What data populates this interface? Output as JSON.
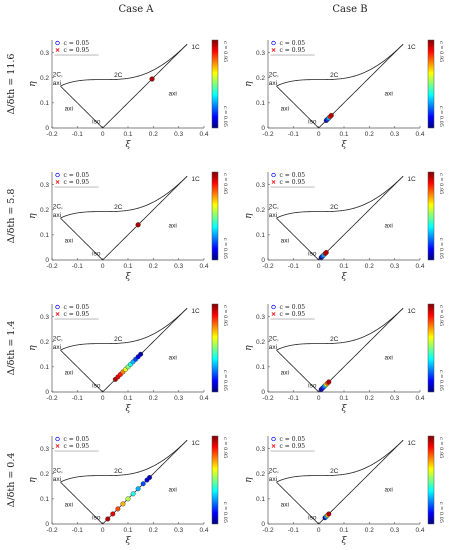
{
  "columns": [
    "Case A",
    "Case B"
  ],
  "colormap": [
    "#00007f",
    "#0000ff",
    "#007fff",
    "#00ffff",
    "#7fff7f",
    "#ffff00",
    "#ff7f00",
    "#ff0000",
    "#7f0000"
  ],
  "chart_data": {
    "type": "scatter",
    "grid_layout": "4 rows x 2 columns",
    "xlabel": "ξ",
    "ylabel": "η",
    "xlim": [
      -0.2,
      0.4
    ],
    "ylim": [
      0,
      0.35
    ],
    "xticks": [
      "-0.2",
      "-0.1",
      "0",
      "0.1",
      "0.2",
      "0.3",
      "0.4"
    ],
    "yticks": [
      "0",
      "0.1",
      "0.2",
      "0.3"
    ],
    "region_labels": [
      "1C",
      "2C",
      "2C,",
      "axi",
      "axi",
      "axi",
      "iso"
    ],
    "legend": [
      {
        "marker": "circle",
        "color": "#0000ff",
        "label": "c = 0.05"
      },
      {
        "marker": "x",
        "color": "#ff0000",
        "label": "c = 0.95"
      }
    ],
    "colorbar": {
      "top_label": "c = 0.95",
      "bottom_label": "c = 0.05"
    },
    "rows": [
      {
        "label": "Δ/δth = 11.6",
        "panels": [
          {
            "case": "Case A",
            "points": [
              [
                0.195,
                0.195,
                0.5
              ],
              [
                0.195,
                0.195,
                0.95
              ]
            ]
          },
          {
            "case": "Case B",
            "points": [
              [
                0.03,
                0.03,
                0.05
              ],
              [
                0.033,
                0.033,
                0.1
              ],
              [
                0.036,
                0.036,
                0.2
              ],
              [
                0.04,
                0.04,
                0.3
              ],
              [
                0.045,
                0.045,
                0.85
              ],
              [
                0.05,
                0.05,
                0.95
              ]
            ]
          }
        ]
      },
      {
        "label": "Δ/δth = 5.8",
        "panels": [
          {
            "case": "Case A",
            "points": [
              [
                0.14,
                0.14,
                0.6
              ],
              [
                0.14,
                0.14,
                0.95
              ]
            ]
          },
          {
            "case": "Case B",
            "points": [
              [
                0.01,
                0.01,
                0.05
              ],
              [
                0.013,
                0.013,
                0.1
              ],
              [
                0.016,
                0.016,
                0.2
              ],
              [
                0.02,
                0.02,
                0.3
              ],
              [
                0.026,
                0.026,
                0.9
              ],
              [
                0.03,
                0.03,
                0.95
              ]
            ]
          }
        ]
      },
      {
        "label": "Δ/δth = 1.4",
        "panels": [
          {
            "case": "Case A",
            "points": [
              [
                0.05,
                0.05,
                0.95
              ],
              [
                0.06,
                0.06,
                0.9
              ],
              [
                0.07,
                0.07,
                0.85
              ],
              [
                0.08,
                0.08,
                0.75
              ],
              [
                0.09,
                0.09,
                0.6
              ],
              [
                0.1,
                0.1,
                0.5
              ],
              [
                0.11,
                0.11,
                0.4
              ],
              [
                0.12,
                0.12,
                0.3
              ],
              [
                0.13,
                0.13,
                0.2
              ],
              [
                0.14,
                0.14,
                0.1
              ],
              [
                0.15,
                0.15,
                0.05
              ]
            ]
          },
          {
            "case": "Case B",
            "points": [
              [
                0.01,
                0.01,
                0.05
              ],
              [
                0.015,
                0.015,
                0.1
              ],
              [
                0.02,
                0.02,
                0.2
              ],
              [
                0.025,
                0.025,
                0.3
              ],
              [
                0.03,
                0.03,
                0.6
              ],
              [
                0.035,
                0.035,
                0.8
              ],
              [
                0.04,
                0.04,
                0.95
              ]
            ]
          }
        ]
      },
      {
        "label": "Δ/δth = 0.4",
        "panels": [
          {
            "case": "Case A",
            "points": [
              [
                0.02,
                0.02,
                0.95
              ],
              [
                0.04,
                0.04,
                0.9
              ],
              [
                0.06,
                0.06,
                0.8
              ],
              [
                0.08,
                0.08,
                0.7
              ],
              [
                0.1,
                0.1,
                0.55
              ],
              [
                0.12,
                0.12,
                0.4
              ],
              [
                0.14,
                0.14,
                0.3
              ],
              [
                0.16,
                0.16,
                0.2
              ],
              [
                0.175,
                0.175,
                0.1
              ],
              [
                0.185,
                0.185,
                0.05
              ]
            ]
          },
          {
            "case": "Case B",
            "points": [
              [
                0.025,
                0.025,
                0.05
              ],
              [
                0.03,
                0.03,
                0.3
              ],
              [
                0.035,
                0.035,
                0.7
              ],
              [
                0.04,
                0.04,
                0.95
              ]
            ]
          }
        ]
      }
    ]
  }
}
